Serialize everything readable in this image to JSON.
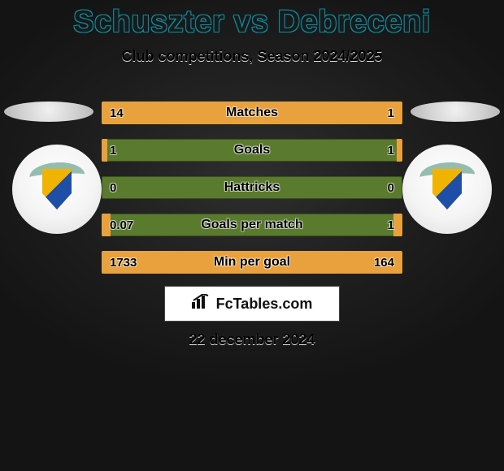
{
  "header": {
    "title": "Schuszter vs Debreceni",
    "subtitle": "Club competitions, Season 2024/2025"
  },
  "colors": {
    "title_stroke": "#0a8fa3",
    "title_highlight": "#27d4e6",
    "bar_green": "#5a7a2e",
    "bar_orange": "#e8a13c",
    "page_bg_center": "#2e2e2e",
    "page_bg_edge": "#141414",
    "crest_yellow": "#f0b400",
    "crest_blue": "#1e4ea8",
    "crest_ribbon": "#94bdb0"
  },
  "stats": [
    {
      "label": "Matches",
      "left_value": "14",
      "right_value": "1",
      "left_fill_pct": 93,
      "right_fill_pct": 7
    },
    {
      "label": "Goals",
      "left_value": "1",
      "right_value": "1",
      "left_fill_pct": 2,
      "right_fill_pct": 2
    },
    {
      "label": "Hattricks",
      "left_value": "0",
      "right_value": "0",
      "left_fill_pct": 0,
      "right_fill_pct": 0
    },
    {
      "label": "Goals per match",
      "left_value": "0.07",
      "right_value": "1",
      "left_fill_pct": 3,
      "right_fill_pct": 3
    },
    {
      "label": "Min per goal",
      "left_value": "1733",
      "right_value": "164",
      "left_fill_pct": 85,
      "right_fill_pct": 15
    }
  ],
  "branding": {
    "icon_name": "bar-chart-icon",
    "text": "FcTables.com"
  },
  "date": "22 december 2024"
}
